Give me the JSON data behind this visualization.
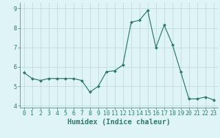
{
  "xlabel": "Humidex (Indice chaleur)",
  "x_values": [
    0,
    1,
    2,
    3,
    4,
    5,
    6,
    7,
    8,
    9,
    10,
    11,
    12,
    13,
    14,
    15,
    16,
    17,
    18,
    19,
    20,
    21,
    22,
    23
  ],
  "y_values": [
    5.7,
    5.4,
    5.3,
    5.4,
    5.4,
    5.4,
    5.4,
    5.3,
    4.7,
    5.0,
    5.75,
    5.8,
    6.1,
    8.3,
    8.4,
    8.9,
    7.0,
    8.15,
    7.15,
    5.75,
    4.35,
    4.35,
    4.45,
    4.3
  ],
  "ylim": [
    3.9,
    9.3
  ],
  "xlim": [
    -0.5,
    23.5
  ],
  "yticks": [
    4,
    5,
    6,
    7,
    8,
    9
  ],
  "xticks": [
    0,
    1,
    2,
    3,
    4,
    5,
    6,
    7,
    8,
    9,
    10,
    11,
    12,
    13,
    14,
    15,
    16,
    17,
    18,
    19,
    20,
    21,
    22,
    23
  ],
  "line_color": "#2d7a6e",
  "marker": "D",
  "marker_size": 2.0,
  "bg_color": "#dff4f4",
  "grid_color": "#b8d8d8",
  "tick_label_fontsize": 6,
  "xlabel_fontsize": 7.5
}
